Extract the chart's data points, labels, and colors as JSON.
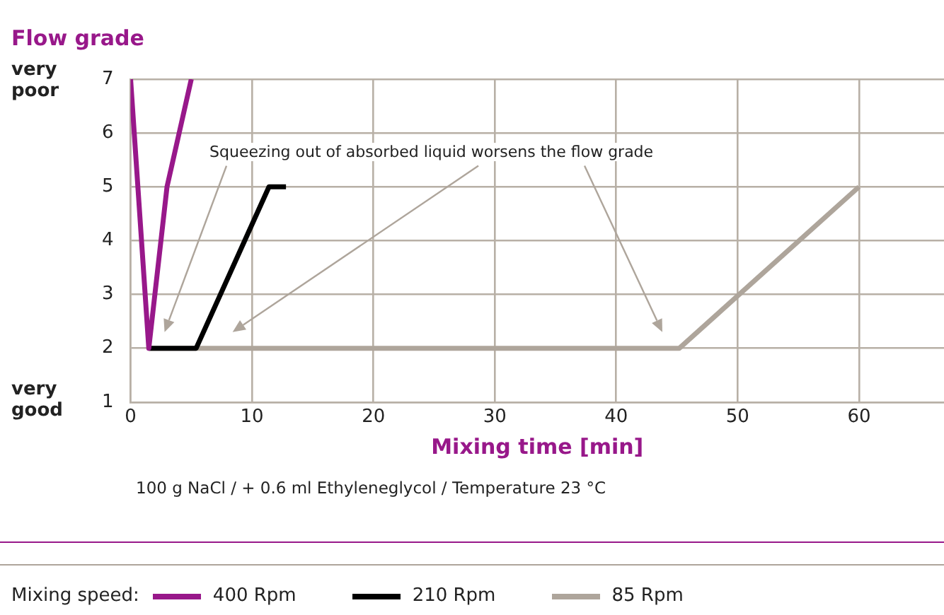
{
  "chart_data": {
    "type": "line",
    "title": "Flow grade",
    "xlabel": "Mixing time [min]",
    "legend_title": "Mixing speed:",
    "xlim": [
      0,
      67
    ],
    "xticks": [
      0,
      10,
      20,
      30,
      40,
      50,
      60
    ],
    "ylim": [
      1,
      7
    ],
    "yticks": [
      1,
      2,
      3,
      4,
      5,
      6,
      7
    ],
    "grid": true,
    "legend": "bottom",
    "marker": "none",
    "line_style": "solid",
    "annotations": [
      "very poor",
      "very good",
      "Squeezing out of absorbed liquid worsens the flow grade",
      "100 g NaCl / + 0.6 ml Ethyleneglycol / Temperature 23 °C"
    ],
    "series": [
      {
        "name": "400 Rpm",
        "color": "#98188a",
        "x": [
          0,
          1.5,
          3,
          5
        ],
        "values": [
          7,
          2,
          5,
          7
        ]
      },
      {
        "name": "210 Rpm",
        "color": "#000000",
        "x": [
          1.5,
          5.4,
          11.4,
          12.8
        ],
        "values": [
          2,
          2,
          5,
          5
        ]
      },
      {
        "name": "85 Rpm",
        "color": "#aea59b",
        "x": [
          1.5,
          45.2,
          60
        ],
        "values": [
          2,
          2,
          5
        ]
      }
    ]
  }
}
